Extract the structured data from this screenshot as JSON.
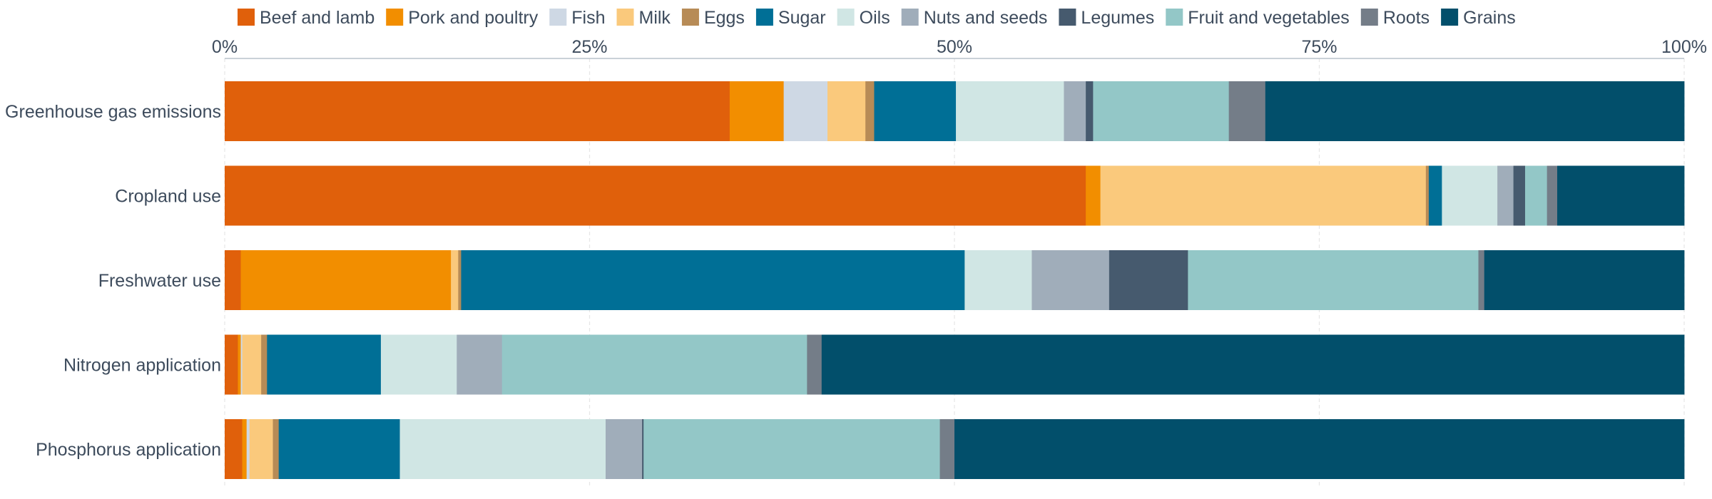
{
  "chart_data": {
    "type": "bar",
    "orientation": "horizontal",
    "stacked": true,
    "normalized": true,
    "categories": [
      "Greenhouse gas emissions",
      "Cropland use",
      "Freshwater use",
      "Nitrogen application",
      "Phosphorus application"
    ],
    "xlim": [
      0,
      100
    ],
    "x_ticks": [
      0,
      25,
      50,
      75,
      100
    ],
    "x_tick_labels": [
      "0%",
      "25%",
      "50%",
      "75%",
      "100%"
    ],
    "grid": true,
    "legend_position": "top",
    "series": [
      {
        "name": "Beef and lamb",
        "color": "#e0600b",
        "values": [
          34.6,
          59.0,
          1.1,
          0.9,
          1.2
        ]
      },
      {
        "name": "Pork and poultry",
        "color": "#f28e00",
        "values": [
          3.7,
          1.0,
          14.4,
          0.2,
          0.3
        ]
      },
      {
        "name": "Fish",
        "color": "#ced8e4",
        "values": [
          3.0,
          0.0,
          0.0,
          0.1,
          0.2
        ]
      },
      {
        "name": "Milk",
        "color": "#fac97c",
        "values": [
          2.6,
          22.3,
          0.5,
          1.3,
          1.6
        ]
      },
      {
        "name": "Eggs",
        "color": "#b78b56",
        "values": [
          0.6,
          0.2,
          0.2,
          0.4,
          0.4
        ]
      },
      {
        "name": "Sugar",
        "color": "#006f96",
        "values": [
          5.6,
          0.9,
          34.5,
          7.8,
          8.3
        ]
      },
      {
        "name": "Oils",
        "color": "#d0e6e4",
        "values": [
          7.4,
          3.8,
          4.6,
          5.2,
          14.1
        ]
      },
      {
        "name": "Nuts and seeds",
        "color": "#a0adba",
        "values": [
          1.5,
          1.1,
          5.3,
          3.1,
          2.5
        ]
      },
      {
        "name": "Legumes",
        "color": "#465a6e",
        "values": [
          0.5,
          0.8,
          5.4,
          0.0,
          0.1
        ]
      },
      {
        "name": "Fruit and vegetables",
        "color": "#93c7c7",
        "values": [
          9.3,
          1.5,
          19.9,
          20.9,
          20.3
        ]
      },
      {
        "name": "Roots",
        "color": "#747d88",
        "values": [
          2.5,
          0.7,
          0.4,
          1.0,
          1.0
        ]
      },
      {
        "name": "Grains",
        "color": "#024f6b",
        "values": [
          28.7,
          8.7,
          13.7,
          59.1,
          50.0
        ]
      }
    ]
  }
}
